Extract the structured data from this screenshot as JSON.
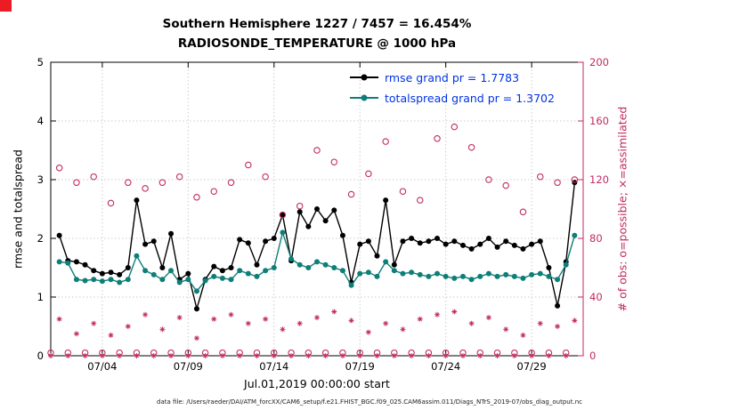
{
  "colors": {
    "black": "#000000",
    "teal": "#0E7E78",
    "crimson": "#C22A62",
    "legend_text": "#0033E6",
    "grid": "#cccccc",
    "corner_red": "#EB1C24"
  },
  "footer": {
    "datafile_text": "data file: /Users/raeder/DAI/ATM_forcXX/CAM6_setup/f.e21.FHIST_BGC.f09_025.CAM6assim.011/Diags_NTrS_2019-07/obs_diag_output.nc"
  },
  "chart_data": {
    "type": "line",
    "title_line1": "Southern Hemisphere 1227 / 7457 = 16.454%",
    "title_line2": "RADIOSONDE_TEMPERATURE @ 1000 hPa",
    "xlabel": "Jul.01,2019 00:00:00 start",
    "ylabel_left": "rmse and totalspread",
    "ylabel_right": "# of obs: o=possible; ×=assimilated",
    "ylim_left": [
      0,
      5
    ],
    "ylim_right": [
      0,
      200
    ],
    "yticks_left": [
      0,
      1,
      2,
      3,
      4,
      5
    ],
    "yticks_right": [
      0,
      40,
      80,
      120,
      160,
      200
    ],
    "xlim_days": [
      1,
      32
    ],
    "xticks": [
      {
        "day": 4,
        "label": "07/04"
      },
      {
        "day": 9,
        "label": "07/09"
      },
      {
        "day": 14,
        "label": "07/14"
      },
      {
        "day": 19,
        "label": "07/19"
      },
      {
        "day": 24,
        "label": "07/24"
      },
      {
        "day": 29,
        "label": "07/29"
      }
    ],
    "grid": true,
    "legend_position": "top-center-inside",
    "x_days": [
      1,
      1.5,
      2,
      2.5,
      3,
      3.5,
      4,
      4.5,
      5,
      5.5,
      6,
      6.5,
      7,
      7.5,
      8,
      8.5,
      9,
      9.5,
      10,
      10.5,
      11,
      11.5,
      12,
      12.5,
      13,
      13.5,
      14,
      14.5,
      15,
      15.5,
      16,
      16.5,
      17,
      17.5,
      18,
      18.5,
      19,
      19.5,
      20,
      20.5,
      21,
      21.5,
      22,
      22.5,
      23,
      23.5,
      24,
      24.5,
      25,
      25.5,
      26,
      26.5,
      27,
      27.5,
      28,
      28.5,
      29,
      29.5,
      30,
      30.5,
      31,
      31.5
    ],
    "series": [
      {
        "name": "rmse grand pr = 1.7783",
        "axis": "left",
        "marker": "filled-dot",
        "line": true,
        "color": "#000000",
        "values": [
          null,
          2.05,
          1.62,
          1.6,
          1.55,
          1.45,
          1.4,
          1.42,
          1.38,
          1.5,
          2.65,
          1.9,
          1.95,
          1.5,
          2.08,
          1.3,
          1.4,
          0.8,
          1.3,
          1.52,
          1.45,
          1.5,
          1.98,
          1.92,
          1.55,
          1.95,
          2.0,
          2.4,
          1.62,
          2.45,
          2.2,
          2.5,
          2.3,
          2.48,
          2.05,
          1.25,
          1.9,
          1.95,
          1.7,
          2.65,
          1.55,
          1.95,
          2.0,
          1.92,
          1.95,
          2.0,
          1.9,
          1.95,
          1.88,
          1.82,
          1.9,
          2.0,
          1.85,
          1.95,
          1.88,
          1.82,
          1.9,
          1.95,
          1.5,
          0.85,
          1.6,
          2.95
        ]
      },
      {
        "name": "totalspread grand pr = 1.3702",
        "axis": "left",
        "marker": "filled-dot",
        "line": true,
        "color": "#0E7E78",
        "values": [
          null,
          1.6,
          1.58,
          1.3,
          1.28,
          1.3,
          1.27,
          1.3,
          1.25,
          1.3,
          1.7,
          1.45,
          1.38,
          1.3,
          1.45,
          1.25,
          1.3,
          1.1,
          1.28,
          1.35,
          1.32,
          1.3,
          1.45,
          1.4,
          1.35,
          1.45,
          1.5,
          2.1,
          1.65,
          1.55,
          1.5,
          1.6,
          1.55,
          1.5,
          1.45,
          1.2,
          1.4,
          1.42,
          1.35,
          1.6,
          1.45,
          1.4,
          1.42,
          1.38,
          1.35,
          1.4,
          1.35,
          1.32,
          1.35,
          1.3,
          1.35,
          1.4,
          1.35,
          1.38,
          1.35,
          1.32,
          1.38,
          1.4,
          1.35,
          1.3,
          1.55,
          2.05
        ]
      },
      {
        "name": "possible",
        "axis": "right",
        "marker": "open-circle",
        "line": false,
        "color": "#C22A62",
        "values": [
          2,
          128,
          2,
          118,
          2,
          122,
          2,
          104,
          2,
          118,
          2,
          114,
          2,
          118,
          2,
          122,
          2,
          108,
          2,
          112,
          2,
          118,
          2,
          130,
          2,
          122,
          2,
          96,
          2,
          102,
          2,
          140,
          2,
          132,
          2,
          110,
          2,
          124,
          2,
          146,
          2,
          112,
          2,
          106,
          2,
          148,
          2,
          156,
          2,
          142,
          2,
          120,
          2,
          116,
          2,
          98,
          2,
          122,
          2,
          118,
          2,
          120
        ]
      },
      {
        "name": "assimilated",
        "axis": "right",
        "marker": "asterisk",
        "line": false,
        "color": "#C22A62",
        "values": [
          0,
          25,
          0,
          15,
          0,
          22,
          0,
          14,
          0,
          20,
          0,
          28,
          0,
          18,
          0,
          26,
          0,
          12,
          0,
          25,
          0,
          28,
          0,
          22,
          0,
          25,
          0,
          18,
          0,
          22,
          0,
          26,
          0,
          30,
          0,
          24,
          0,
          16,
          0,
          22,
          0,
          18,
          0,
          25,
          0,
          28,
          0,
          30,
          0,
          22,
          0,
          26,
          0,
          18,
          0,
          14,
          0,
          22,
          0,
          20,
          0,
          24
        ]
      }
    ]
  }
}
